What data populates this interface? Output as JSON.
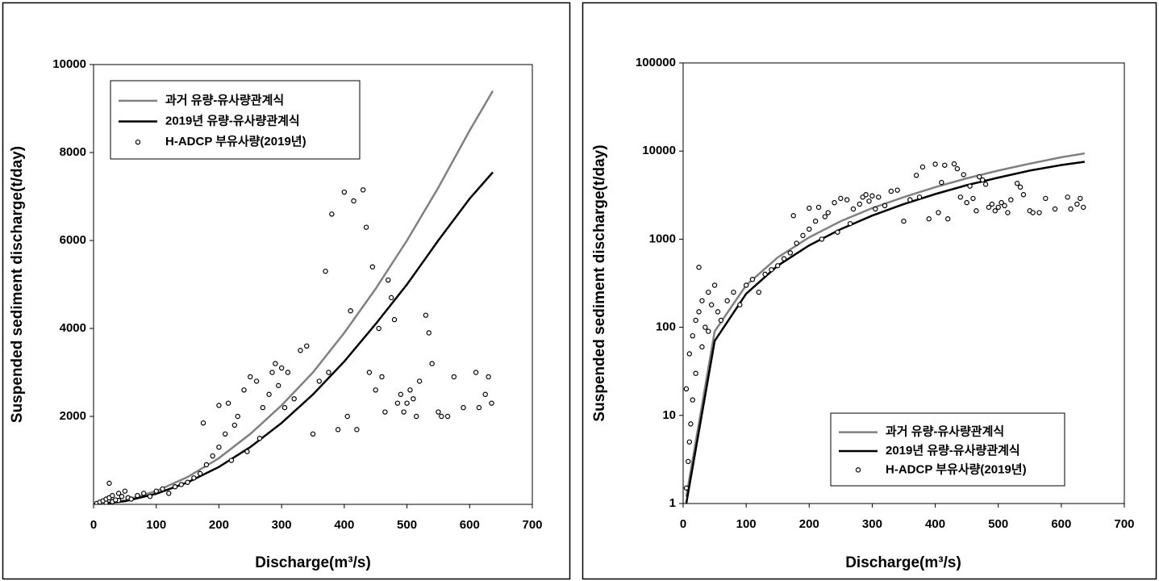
{
  "chart_data": [
    {
      "type": "scatter",
      "xlabel": "Discharge(m³/s)",
      "ylabel": "Suspended sediment discharge(t/day)",
      "xlim": [
        0,
        700
      ],
      "xticks": [
        0,
        100,
        200,
        300,
        400,
        500,
        600,
        700
      ],
      "ylim": [
        0,
        10000
      ],
      "yticks": [
        2000,
        4000,
        6000,
        8000,
        10000
      ],
      "log_y": false,
      "legend_position": "upper left",
      "lines": [
        {
          "name": "과거 유량-유사량관계식",
          "color": "#808080",
          "x": [
            5,
            50,
            100,
            150,
            200,
            250,
            300,
            350,
            400,
            450,
            500,
            550,
            600,
            637
          ],
          "values": [
            1.2,
            90,
            300,
            620,
            1050,
            1600,
            2250,
            3000,
            3900,
            4900,
            6000,
            7200,
            8500,
            9400
          ]
        },
        {
          "name": "2019년 유량-유사량관계식",
          "color": "#000000",
          "x": [
            5,
            50,
            100,
            150,
            200,
            250,
            300,
            350,
            400,
            450,
            500,
            550,
            600,
            637
          ],
          "values": [
            1.0,
            70,
            240,
            500,
            850,
            1300,
            1850,
            2500,
            3250,
            4100,
            5000,
            6000,
            6950,
            7550
          ]
        }
      ],
      "series": [
        {
          "name": "H-ADCP 부유사량(2019년)",
          "color": "#000000",
          "x": [
            5,
            8,
            10,
            12,
            15,
            20,
            30,
            40,
            5,
            10,
            15,
            20,
            25,
            25,
            30,
            35,
            40,
            45,
            50,
            55,
            60,
            70,
            80,
            90,
            100,
            110,
            120,
            130,
            140,
            150,
            160,
            170,
            175,
            180,
            190,
            200,
            200,
            210,
            215,
            220,
            225,
            230,
            240,
            245,
            250,
            260,
            265,
            270,
            280,
            285,
            290,
            295,
            300,
            305,
            310,
            320,
            330,
            340,
            350,
            360,
            370,
            375,
            380,
            390,
            400,
            405,
            410,
            415,
            420,
            430,
            435,
            440,
            445,
            450,
            455,
            460,
            465,
            470,
            475,
            480,
            485,
            490,
            495,
            500,
            505,
            510,
            515,
            520,
            530,
            535,
            540,
            550,
            555,
            565,
            575,
            590,
            610,
            615,
            625,
            630,
            635
          ],
          "values": [
            1.5,
            3,
            5,
            8,
            15,
            30,
            60,
            90,
            20,
            50,
            80,
            120,
            480,
            150,
            200,
            100,
            250,
            180,
            300,
            150,
            120,
            200,
            250,
            180,
            300,
            350,
            250,
            400,
            450,
            500,
            600,
            700,
            1850,
            900,
            1100,
            1300,
            2250,
            1600,
            2300,
            1000,
            1800,
            2000,
            2600,
            1200,
            2900,
            2800,
            1500,
            2200,
            2500,
            3000,
            3200,
            2700,
            3100,
            2200,
            3000,
            2400,
            3500,
            3600,
            1600,
            2800,
            5300,
            3000,
            6600,
            1700,
            7100,
            2000,
            4400,
            6900,
            1700,
            7150,
            6300,
            3000,
            5400,
            2600,
            4000,
            2900,
            2100,
            5100,
            4700,
            4200,
            2300,
            2500,
            2100,
            2300,
            2600,
            2400,
            2000,
            2800,
            4300,
            3900,
            3200,
            2100,
            2000,
            2000,
            2900,
            2200,
            3000,
            2200,
            2500,
            2900,
            2300
          ]
        }
      ]
    },
    {
      "type": "scatter",
      "xlabel": "Discharge(m³/s)",
      "ylabel": "Suspended sediment discharge(t/day)",
      "xlim": [
        0,
        700
      ],
      "xticks": [
        0,
        100,
        200,
        300,
        400,
        500,
        600,
        700
      ],
      "ylim": [
        1,
        100000
      ],
      "yticks": [
        1,
        10,
        100,
        1000,
        10000,
        100000
      ],
      "log_y": true,
      "legend_position": "lower right",
      "lines": [
        {
          "name": "과거 유량-유사량관계식",
          "color": "#808080",
          "x": [
            5,
            50,
            100,
            150,
            200,
            250,
            300,
            350,
            400,
            450,
            500,
            550,
            600,
            637
          ],
          "values": [
            1.2,
            90,
            300,
            620,
            1050,
            1600,
            2250,
            3000,
            3900,
            4900,
            6000,
            7200,
            8500,
            9400
          ]
        },
        {
          "name": "2019년 유량-유사량관계식",
          "color": "#000000",
          "x": [
            5,
            50,
            100,
            150,
            200,
            250,
            300,
            350,
            400,
            450,
            500,
            550,
            600,
            637
          ],
          "values": [
            1.0,
            70,
            240,
            500,
            850,
            1300,
            1850,
            2500,
            3250,
            4100,
            5000,
            6000,
            6950,
            7550
          ]
        }
      ],
      "series": [
        {
          "name": "H-ADCP 부유사량(2019년)",
          "color": "#000000",
          "x": [
            5,
            8,
            10,
            12,
            15,
            20,
            30,
            40,
            5,
            10,
            15,
            20,
            25,
            25,
            30,
            35,
            40,
            45,
            50,
            55,
            60,
            70,
            80,
            90,
            100,
            110,
            120,
            130,
            140,
            150,
            160,
            170,
            175,
            180,
            190,
            200,
            200,
            210,
            215,
            220,
            225,
            230,
            240,
            245,
            250,
            260,
            265,
            270,
            280,
            285,
            290,
            295,
            300,
            305,
            310,
            320,
            330,
            340,
            350,
            360,
            370,
            375,
            380,
            390,
            400,
            405,
            410,
            415,
            420,
            430,
            435,
            440,
            445,
            450,
            455,
            460,
            465,
            470,
            475,
            480,
            485,
            490,
            495,
            500,
            505,
            510,
            515,
            520,
            530,
            535,
            540,
            550,
            555,
            565,
            575,
            590,
            610,
            615,
            625,
            630,
            635
          ],
          "values": [
            1.5,
            3,
            5,
            8,
            15,
            30,
            60,
            90,
            20,
            50,
            80,
            120,
            480,
            150,
            200,
            100,
            250,
            180,
            300,
            150,
            120,
            200,
            250,
            180,
            300,
            350,
            250,
            400,
            450,
            500,
            600,
            700,
            1850,
            900,
            1100,
            1300,
            2250,
            1600,
            2300,
            1000,
            1800,
            2000,
            2600,
            1200,
            2900,
            2800,
            1500,
            2200,
            2500,
            3000,
            3200,
            2700,
            3100,
            2200,
            3000,
            2400,
            3500,
            3600,
            1600,
            2800,
            5300,
            3000,
            6600,
            1700,
            7100,
            2000,
            4400,
            6900,
            1700,
            7150,
            6300,
            3000,
            5400,
            2600,
            4000,
            2900,
            2100,
            5100,
            4700,
            4200,
            2300,
            2500,
            2100,
            2300,
            2600,
            2400,
            2000,
            2800,
            4300,
            3900,
            3200,
            2100,
            2000,
            2000,
            2900,
            2200,
            3000,
            2200,
            2500,
            2900,
            2300
          ]
        }
      ]
    }
  ]
}
